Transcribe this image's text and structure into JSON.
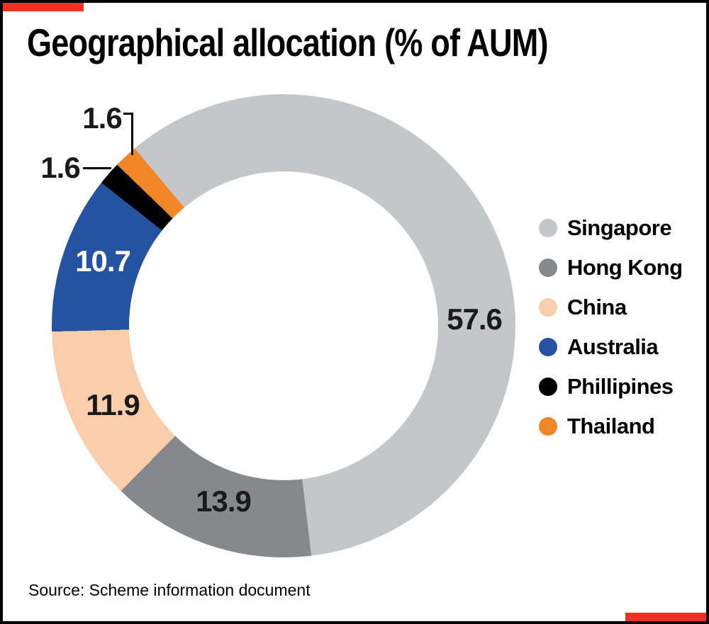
{
  "frame": {
    "border_color": "#000000",
    "accent_color": "#ee3124"
  },
  "title": "Geographical allocation (% of AUM)",
  "source_note": "Source: Scheme information document",
  "chart_data": {
    "type": "pie",
    "subtype": "donut",
    "title": "Geographical allocation (% of AUM)",
    "unit": "% of AUM",
    "start_angle_deg": -40,
    "direction": "clockwise",
    "legend_position": "right",
    "inner_radius_ratio": 0.667,
    "segments": [
      {
        "label": "Singapore",
        "value": 57.6,
        "color": "#c5c6c8",
        "value_label_color": "#1a1a1a"
      },
      {
        "label": "Hong Kong",
        "value": 13.9,
        "color": "#87888b",
        "value_label_color": "#1a1a1a"
      },
      {
        "label": "China",
        "value": 11.9,
        "color": "#facdab",
        "value_label_color": "#1a1a1a"
      },
      {
        "label": "Australia",
        "value": 10.7,
        "color": "#2553a2",
        "value_label_color": "#ffffff"
      },
      {
        "label": "Phillipines",
        "value": 1.6,
        "color": "#000000",
        "value_label_color": "#1a1a1a"
      },
      {
        "label": "Thailand",
        "value": 1.6,
        "color": "#f08626",
        "value_label_color": "#1a1a1a"
      }
    ]
  }
}
